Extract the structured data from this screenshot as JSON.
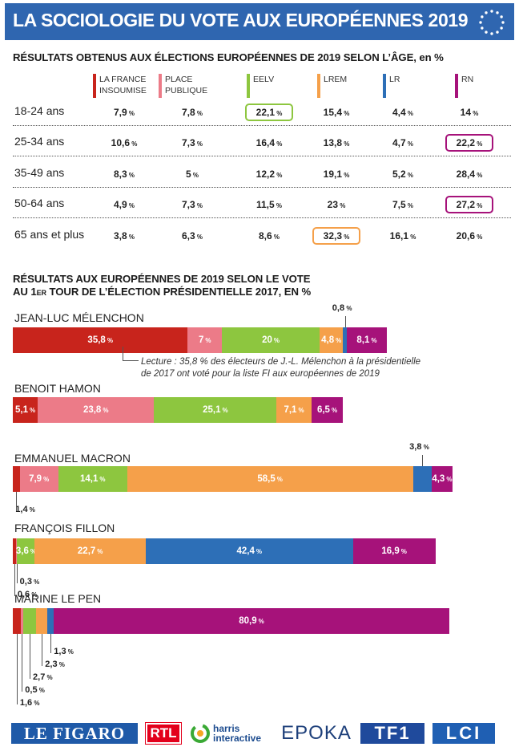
{
  "header": {
    "title": "LA SOCIOLOGIE DU VOTE AUX EUROPÉENNES 2019"
  },
  "colors": {
    "banner": "#2f66b0",
    "fi": "#c8241c",
    "pp": "#ec7b88",
    "eelv": "#8dc63f",
    "lrem": "#f5a04a",
    "lr": "#2d6fb7",
    "rn": "#a6127a"
  },
  "section1": {
    "title": "RÉSULTATS OBTENUS AUX ÉLECTIONS EUROPÉENNES DE 2019 SELON L’ÂGE, en %"
  },
  "section2": {
    "title_line1": "RÉSULTATS AUX EUROPÉENNES DE 2019 SELON LE VOTE",
    "title_line2_a": "AU 1",
    "title_line2_sup": "ER",
    "title_line2_b": " TOUR DE L’ÉLECTION PRÉSIDENTIELLE 2017, EN %"
  },
  "lecture": {
    "line1": "Lecture : 35,8 % des électeurs de J.-L. Mélenchon à la présidentielle",
    "line2": "de 2017 ont voté pour la liste FI aux européennes de 2019"
  },
  "pct_symbol": "%",
  "logos": [
    "LE FIGARO",
    "RTL",
    "harris",
    "interactive",
    "EPOKA",
    "TF1",
    "LCI"
  ],
  "chart_data": [
    {
      "type": "table",
      "title": "RÉSULTATS OBTENUS AUX ÉLECTIONS EUROPÉENNES DE 2019 SELON L’ÂGE, en %",
      "columns": [
        {
          "line1": "LA FRANCE",
          "line2": "INSOUMISE",
          "color": "#c8241c"
        },
        {
          "line1": "PLACE",
          "line2": "PUBLIQUE",
          "color": "#ec7b88"
        },
        {
          "line1": "EELV",
          "line2": "",
          "color": "#8dc63f"
        },
        {
          "line1": "LREM",
          "line2": "",
          "color": "#f5a04a"
        },
        {
          "line1": "LR",
          "line2": "",
          "color": "#2d6fb7"
        },
        {
          "line1": "RN",
          "line2": "",
          "color": "#a6127a"
        }
      ],
      "rows": [
        {
          "label": "18-24 ans",
          "values": [
            "7,9",
            "7,8",
            "22,1",
            "15,4",
            "4,4",
            "14"
          ],
          "highlight": 2
        },
        {
          "label": "25-34 ans",
          "values": [
            "10,6",
            "7,3",
            "16,4",
            "13,8",
            "4,7",
            "22,2"
          ],
          "highlight": 5
        },
        {
          "label": "35-49 ans",
          "values": [
            "8,3",
            "5",
            "12,2",
            "19,1",
            "5,2",
            "28,4"
          ],
          "highlight": -1
        },
        {
          "label": "50-64 ans",
          "values": [
            "4,9",
            "7,3",
            "11,5",
            "23",
            "7,5",
            "27,2"
          ],
          "highlight": 5
        },
        {
          "label": "65 ans et plus",
          "values": [
            "3,8",
            "6,3",
            "8,6",
            "32,3",
            "16,1",
            "20,6"
          ],
          "highlight": 3
        }
      ]
    },
    {
      "type": "bar",
      "stacked": true,
      "orientation": "horizontal",
      "title": "RÉSULTATS AUX EUROPÉENNES DE 2019 SELON LE VOTE AU 1ER TOUR DE L’ÉLECTION PRÉSIDENTIELLE 2017, EN %",
      "series_names": [
        "LA FRANCE INSOUMISE",
        "PLACE PUBLIQUE",
        "EELV",
        "LREM",
        "LR",
        "RN"
      ],
      "candidates": [
        {
          "name": "JEAN-LUC MÉLENCHON",
          "values": [
            35.8,
            7,
            20,
            4.8,
            0.8,
            8.1
          ],
          "labels": [
            "35,8",
            "7",
            "20",
            "4,8",
            "0,8",
            "8,1"
          ],
          "outside": [
            4
          ]
        },
        {
          "name": "BENOIT HAMON",
          "values": [
            5.1,
            23.8,
            25.1,
            7.1,
            0,
            6.5
          ],
          "labels": [
            "5,1",
            "23,8",
            "25,1",
            "7,1",
            "",
            "6,5"
          ],
          "outside": []
        },
        {
          "name": "EMMANUEL MACRON",
          "values": [
            1.4,
            7.9,
            14.1,
            58.5,
            3.8,
            4.3
          ],
          "labels": [
            "1,4",
            "7,9",
            "14,1",
            "58,5",
            "3,8",
            "4,3"
          ],
          "outside": [
            0,
            4
          ]
        },
        {
          "name": "FRANÇOIS FILLON",
          "values": [
            0.6,
            0.3,
            3.6,
            22.7,
            42.4,
            16.9
          ],
          "labels": [
            "0,6",
            "0,3",
            "3,6",
            "22,7",
            "42,4",
            "16,9"
          ],
          "outside": [
            0,
            1
          ]
        },
        {
          "name": "MARINE LE PEN",
          "values": [
            1.6,
            0.5,
            2.7,
            2.3,
            1.3,
            80.9
          ],
          "labels": [
            "1,6",
            "0,5",
            "2,7",
            "2,3",
            "1,3",
            "80,9"
          ],
          "outside": [
            0,
            1,
            2,
            3,
            4
          ]
        }
      ]
    }
  ]
}
